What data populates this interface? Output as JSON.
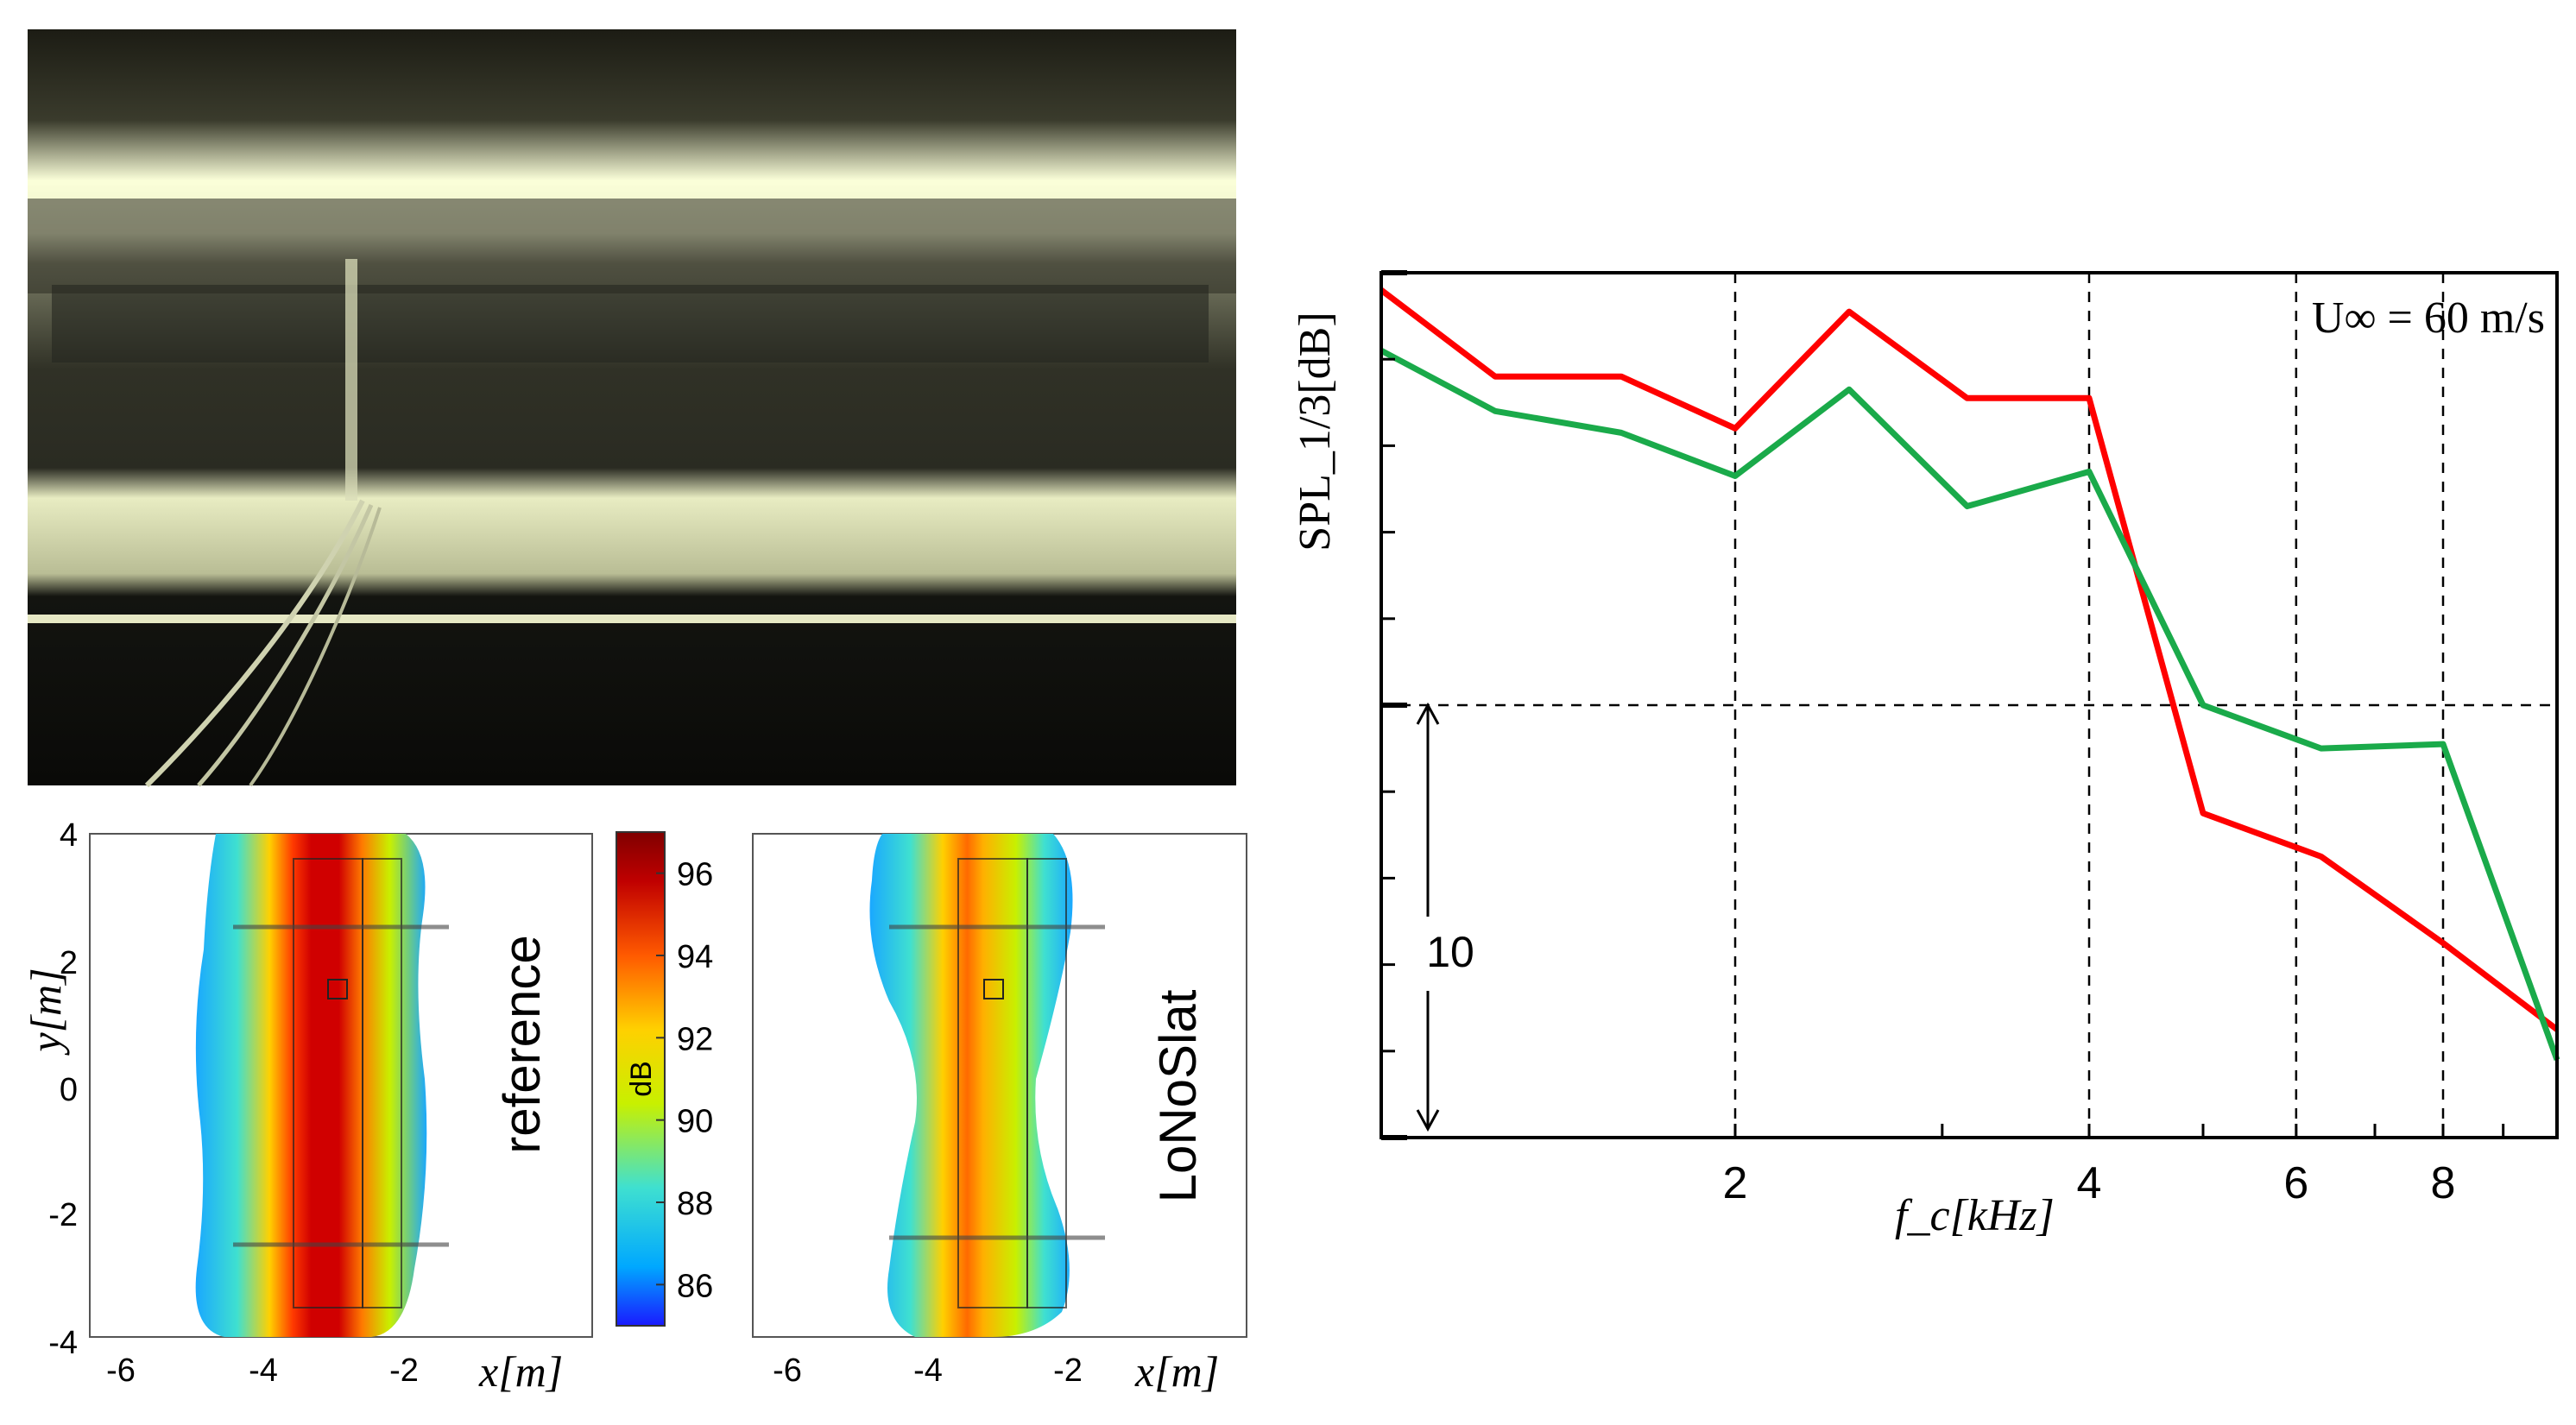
{
  "photo": {
    "description_icon": "wing-model-photo"
  },
  "colorbar": {
    "label": "dB",
    "ticks": [
      96,
      94,
      92,
      90,
      88,
      86
    ],
    "range": [
      85,
      97
    ],
    "colors": [
      "#1a1aff",
      "#00a8ff",
      "#3fe0d0",
      "#c8f000",
      "#ffd000",
      "#ff5a00",
      "#c00000",
      "#800000"
    ]
  },
  "maps": [
    {
      "name": "reference",
      "xlabel": "x[m]",
      "ylabel": "y[m]",
      "xticks": [
        "-6",
        "-4",
        "-2"
      ],
      "yticks": [
        "4",
        "2",
        "0",
        "-2",
        "-4"
      ]
    },
    {
      "name": "LoNoSlat",
      "xlabel": "x[m]",
      "xticks": [
        "-6",
        "-4",
        "-2"
      ]
    }
  ],
  "chart_data": {
    "type": "line",
    "xscale": "log",
    "xlabel": "f_c[kHz]",
    "ylabel": "SPL_1/3[dB]",
    "annotation": "U∞ = 60 m/s",
    "scale_bar_label": "10",
    "scale_bar_db": 10,
    "x_ticks": [
      "2",
      "4",
      "6",
      "8"
    ],
    "x_tick_values": [
      2,
      4,
      6,
      8
    ],
    "xlim": [
      1,
      10
    ],
    "ylim": [
      0,
      20
    ],
    "series": [
      {
        "name": "reference",
        "color": "#ff0000",
        "x": [
          1.0,
          1.25,
          1.6,
          2.0,
          2.5,
          3.15,
          4.0,
          5.0,
          6.3,
          8.0,
          10.0
        ],
        "y": [
          19.6,
          17.6,
          17.6,
          16.4,
          19.1,
          17.1,
          17.1,
          7.5,
          6.5,
          4.5,
          2.5
        ]
      },
      {
        "name": "LoNoSlat",
        "color": "#1aaa4a",
        "x": [
          1.0,
          1.25,
          1.6,
          2.0,
          2.5,
          3.15,
          4.0,
          5.0,
          6.3,
          8.0,
          10.0
        ],
        "y": [
          18.2,
          16.8,
          16.3,
          15.3,
          17.3,
          14.6,
          15.4,
          10.0,
          9.0,
          9.1,
          1.8
        ]
      }
    ]
  }
}
